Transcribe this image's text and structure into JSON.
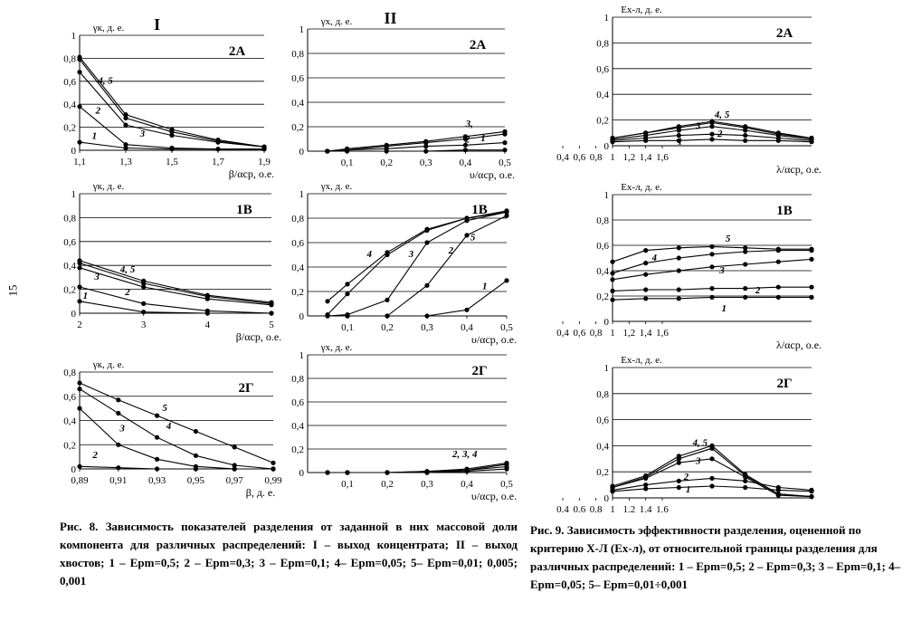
{
  "page_number": "15",
  "caption8": "Рис. 8. Зависимость показателей разделения от заданной в них массовой доли компонента для различных распределений: I – выход концентрата; II – выход хвостов; 1 – Eрm=0,5; 2 – Eрm=0,3; 3 – Eрm=0,1; 4– Eрm=0,05; 5– Eрm=0,01; 0,005; 0,001",
  "caption9": "Рис. 9. Зависимость эффективности разделения, оцененной по критерию Х-Л (Eх-л), от относительной границы разделения для различных распределений: 1 – Eрm=0,5; 2 – Eрm=0,3; 3 – Eрm=0,1; 4– Eрm=0,05; 5– Eрm=0,01÷0,001",
  "colors": {
    "line": "#000000",
    "grid": "#000000",
    "marker": "#000000"
  },
  "chart_data": [
    {
      "id": "I-2A",
      "type": "line",
      "column_heading": "I",
      "title": "2А",
      "ylabel": "γк, д. е.",
      "xlabel": "β/αср, о.е.",
      "xlim": [
        1.1,
        1.9
      ],
      "ylim": [
        0,
        1
      ],
      "xticks": [
        "1,1",
        "1,3",
        "1,5",
        "1,7",
        "1,9"
      ],
      "yticks": [
        "0",
        "0,2",
        "0,4",
        "0,6",
        "0,8",
        "1"
      ],
      "series_labels": [
        "1",
        "2",
        "3",
        "4, 5"
      ],
      "series": [
        {
          "name": "1",
          "x": [
            1.1,
            1.3,
            1.5,
            1.7,
            1.9
          ],
          "y": [
            0.07,
            0.02,
            0.01,
            0.01,
            0.01
          ]
        },
        {
          "name": "2",
          "x": [
            1.1,
            1.3,
            1.5,
            1.7,
            1.9
          ],
          "y": [
            0.38,
            0.05,
            0.02,
            0.01,
            0.01
          ]
        },
        {
          "name": "3",
          "x": [
            1.1,
            1.3,
            1.5,
            1.7,
            1.9
          ],
          "y": [
            0.68,
            0.22,
            0.13,
            0.07,
            0.03
          ]
        },
        {
          "name": "4",
          "x": [
            1.1,
            1.3,
            1.5,
            1.7,
            1.9
          ],
          "y": [
            0.79,
            0.28,
            0.16,
            0.08,
            0.03
          ]
        },
        {
          "name": "5",
          "x": [
            1.1,
            1.3,
            1.5,
            1.7,
            1.9
          ],
          "y": [
            0.81,
            0.31,
            0.18,
            0.09,
            0.03
          ]
        }
      ]
    },
    {
      "id": "II-2A",
      "type": "line",
      "column_heading": "II",
      "title": "2А",
      "ylabel": "γх, д. е.",
      "xlabel": "υ/αср, о.е.",
      "xlim": [
        0,
        0.5
      ],
      "ylim": [
        0,
        1
      ],
      "xticks": [
        "0,1",
        "0,2",
        "0,3",
        "0,4",
        "0,5"
      ],
      "yticks": [
        "0",
        "0,2",
        "0,4",
        "0,6",
        "0,8",
        "1"
      ],
      "series_labels": [
        "1",
        "2",
        "3,"
      ],
      "series": [
        {
          "name": "1",
          "x": [
            0.05,
            0.1,
            0.2,
            0.3,
            0.4,
            0.5
          ],
          "y": [
            0,
            0,
            0,
            0,
            0.01,
            0.01
          ]
        },
        {
          "name": "2",
          "x": [
            0.05,
            0.1,
            0.2,
            0.3,
            0.4,
            0.5
          ],
          "y": [
            0,
            0.01,
            0.02,
            0.04,
            0.05,
            0.07
          ]
        },
        {
          "name": "3",
          "x": [
            0.05,
            0.1,
            0.2,
            0.3,
            0.4,
            0.5
          ],
          "y": [
            0,
            0.01,
            0.04,
            0.07,
            0.1,
            0.14
          ]
        },
        {
          "name": "5",
          "x": [
            0.05,
            0.1,
            0.2,
            0.3,
            0.4,
            0.5
          ],
          "y": [
            0,
            0.02,
            0.05,
            0.08,
            0.12,
            0.16
          ]
        }
      ]
    },
    {
      "id": "III-2A",
      "type": "line",
      "title": "2А",
      "ylabel": "Eх-л, д. е.",
      "xlabel": "λ/αср, о.е.",
      "xlim": [
        0.4,
        1.6
      ],
      "ylim": [
        0,
        1
      ],
      "xticks": [
        "0,4",
        "0,6",
        "0,8",
        "1",
        "1,2",
        "1,4",
        "1,6"
      ],
      "yticks": [
        "0",
        "0,2",
        "0,4",
        "0,6",
        "0,8",
        "1"
      ],
      "series_labels": [
        "1",
        "2",
        "3",
        "4, 5"
      ],
      "series": [
        {
          "name": "1",
          "x": [
            0.4,
            0.6,
            0.8,
            1.0,
            1.2,
            1.4,
            1.6
          ],
          "y": [
            0.03,
            0.04,
            0.04,
            0.05,
            0.04,
            0.04,
            0.03
          ]
        },
        {
          "name": "2",
          "x": [
            0.4,
            0.6,
            0.8,
            1.0,
            1.2,
            1.4,
            1.6
          ],
          "y": [
            0.04,
            0.06,
            0.08,
            0.09,
            0.08,
            0.06,
            0.04
          ]
        },
        {
          "name": "3",
          "x": [
            0.4,
            0.6,
            0.8,
            1.0,
            1.2,
            1.4,
            1.6
          ],
          "y": [
            0.05,
            0.08,
            0.12,
            0.15,
            0.12,
            0.08,
            0.05
          ]
        },
        {
          "name": "4",
          "x": [
            0.4,
            0.6,
            0.8,
            1.0,
            1.2,
            1.4,
            1.6
          ],
          "y": [
            0.06,
            0.1,
            0.14,
            0.18,
            0.14,
            0.09,
            0.06
          ]
        },
        {
          "name": "5",
          "x": [
            0.4,
            0.6,
            0.8,
            1.0,
            1.2,
            1.4,
            1.6
          ],
          "y": [
            0.06,
            0.1,
            0.15,
            0.19,
            0.15,
            0.1,
            0.06
          ]
        }
      ]
    },
    {
      "id": "I-1B",
      "type": "line",
      "title": "1В",
      "ylabel": "γк, д. е.",
      "xlabel": "β/αср, о.е.",
      "xlim": [
        2,
        5
      ],
      "ylim": [
        0,
        1
      ],
      "xticks": [
        "2",
        "3",
        "4",
        "5"
      ],
      "yticks": [
        "0",
        "0,2",
        "0,4",
        "0,6",
        "0,8",
        "1"
      ],
      "series_labels": [
        "1",
        "2",
        "3",
        "4, 5"
      ],
      "series": [
        {
          "name": "1",
          "x": [
            2,
            3,
            4,
            5
          ],
          "y": [
            0.1,
            0.01,
            0.0,
            0.0
          ]
        },
        {
          "name": "2",
          "x": [
            2,
            3,
            4,
            5
          ],
          "y": [
            0.22,
            0.08,
            0.02,
            0.0
          ]
        },
        {
          "name": "3",
          "x": [
            2,
            3,
            4,
            5
          ],
          "y": [
            0.38,
            0.22,
            0.12,
            0.07
          ]
        },
        {
          "name": "4",
          "x": [
            2,
            3,
            4,
            5
          ],
          "y": [
            0.42,
            0.25,
            0.14,
            0.08
          ]
        },
        {
          "name": "5",
          "x": [
            2,
            3,
            4,
            5
          ],
          "y": [
            0.44,
            0.27,
            0.15,
            0.09
          ]
        }
      ]
    },
    {
      "id": "II-1B",
      "type": "line",
      "title": "1В",
      "ylabel": "γх, д. е.",
      "xlabel": "υ/αср, о.е.",
      "xlim": [
        0,
        0.5
      ],
      "ylim": [
        0,
        1
      ],
      "xticks": [
        "0,1",
        "0,2",
        "0,3",
        "0,4",
        "0,5"
      ],
      "yticks": [
        "0",
        "0,2",
        "0,4",
        "0,6",
        "0,8",
        "1"
      ],
      "series_labels": [
        "1",
        "2",
        "3",
        "4",
        "5"
      ],
      "series": [
        {
          "name": "1",
          "x": [
            0.05,
            0.1,
            0.2,
            0.3,
            0.4,
            0.5
          ],
          "y": [
            0,
            0,
            0,
            0,
            0.05,
            0.29
          ]
        },
        {
          "name": "2",
          "x": [
            0.05,
            0.1,
            0.2,
            0.3,
            0.4,
            0.5
          ],
          "y": [
            0,
            0,
            0,
            0.25,
            0.66,
            0.82
          ]
        },
        {
          "name": "3",
          "x": [
            0.05,
            0.1,
            0.2,
            0.3,
            0.4,
            0.5
          ],
          "y": [
            0,
            0.01,
            0.13,
            0.6,
            0.78,
            0.85
          ]
        },
        {
          "name": "4",
          "x": [
            0.05,
            0.1,
            0.2,
            0.3,
            0.4,
            0.5
          ],
          "y": [
            0.01,
            0.18,
            0.5,
            0.7,
            0.8,
            0.85
          ]
        },
        {
          "name": "5",
          "x": [
            0.05,
            0.1,
            0.2,
            0.3,
            0.4,
            0.5
          ],
          "y": [
            0.12,
            0.26,
            0.52,
            0.71,
            0.8,
            0.86
          ]
        }
      ]
    },
    {
      "id": "III-1B",
      "type": "line",
      "title": "1В",
      "ylabel": "Eх-л, д. е.",
      "xlabel": "λ/αср, о.е.",
      "xlim": [
        0.4,
        1.6
      ],
      "ylim": [
        0,
        1
      ],
      "xticks": [
        "0,4",
        "0,6",
        "0,8",
        "1",
        "1,2",
        "1,4",
        "1,6"
      ],
      "yticks": [
        "0",
        "0,2",
        "0,4",
        "0,6",
        "0,8",
        "1"
      ],
      "series_labels": [
        "1",
        "2",
        "3",
        "4",
        "5"
      ],
      "series": [
        {
          "name": "1",
          "x": [
            0.4,
            0.6,
            0.8,
            1.0,
            1.2,
            1.4,
            1.6
          ],
          "y": [
            0.17,
            0.18,
            0.18,
            0.19,
            0.19,
            0.19,
            0.19
          ]
        },
        {
          "name": "2",
          "x": [
            0.4,
            0.6,
            0.8,
            1.0,
            1.2,
            1.4,
            1.6
          ],
          "y": [
            0.24,
            0.25,
            0.25,
            0.26,
            0.26,
            0.27,
            0.27
          ]
        },
        {
          "name": "3",
          "x": [
            0.4,
            0.6,
            0.8,
            1.0,
            1.2,
            1.4,
            1.6
          ],
          "y": [
            0.33,
            0.37,
            0.4,
            0.43,
            0.45,
            0.47,
            0.49
          ]
        },
        {
          "name": "4",
          "x": [
            0.4,
            0.6,
            0.8,
            1.0,
            1.2,
            1.4,
            1.6
          ],
          "y": [
            0.38,
            0.46,
            0.5,
            0.53,
            0.55,
            0.56,
            0.56
          ]
        },
        {
          "name": "5",
          "x": [
            0.4,
            0.6,
            0.8,
            1.0,
            1.2,
            1.4,
            1.6
          ],
          "y": [
            0.47,
            0.56,
            0.58,
            0.59,
            0.58,
            0.57,
            0.57
          ]
        }
      ]
    },
    {
      "id": "I-2G",
      "type": "line",
      "title": "2Г",
      "ylabel": "γк, д. е.",
      "xlabel": "β, д. е.",
      "xlim": [
        0.89,
        0.99
      ],
      "ylim": [
        0,
        0.8
      ],
      "xticks": [
        "0,89",
        "0,91",
        "0,93",
        "0,95",
        "0,97",
        "0,99"
      ],
      "yticks": [
        "0",
        "0,2",
        "0,4",
        "0,6",
        "0,8"
      ],
      "series_labels": [
        "2",
        "3",
        "4",
        "5"
      ],
      "series": [
        {
          "name": "2",
          "x": [
            0.89,
            0.91,
            0.93,
            0.95,
            0.97,
            0.99
          ],
          "y": [
            0.02,
            0.01,
            0.0,
            0.0,
            0.0,
            0.0
          ]
        },
        {
          "name": "3",
          "x": [
            0.89,
            0.91,
            0.93,
            0.95,
            0.97,
            0.99
          ],
          "y": [
            0.5,
            0.2,
            0.08,
            0.02,
            0.0,
            0.0
          ]
        },
        {
          "name": "4",
          "x": [
            0.89,
            0.91,
            0.93,
            0.95,
            0.97,
            0.99
          ],
          "y": [
            0.66,
            0.46,
            0.26,
            0.11,
            0.03,
            0.0
          ]
        },
        {
          "name": "5",
          "x": [
            0.89,
            0.91,
            0.93,
            0.95,
            0.97,
            0.99
          ],
          "y": [
            0.71,
            0.57,
            0.44,
            0.31,
            0.18,
            0.05
          ]
        }
      ]
    },
    {
      "id": "II-2G",
      "type": "line",
      "title": "2Г",
      "ylabel": "γх, д. е.",
      "xlabel": "υ/αср, о.е.",
      "xlim": [
        0,
        0.5
      ],
      "ylim": [
        0,
        1
      ],
      "xticks": [
        "0,1",
        "0,2",
        "0,3",
        "0,4",
        "0,5"
      ],
      "yticks": [
        "0",
        "0,2",
        "0,4",
        "0,6",
        "0,8",
        "1"
      ],
      "series_labels": [
        "2, 3, 4"
      ],
      "series": [
        {
          "name": "1",
          "x": [
            0.05,
            0.1,
            0.2,
            0.3,
            0.4,
            0.5
          ],
          "y": [
            0,
            0,
            0,
            0,
            0.01,
            0.03
          ]
        },
        {
          "name": "2",
          "x": [
            0.05,
            0.1,
            0.2,
            0.3,
            0.4,
            0.5
          ],
          "y": [
            0,
            0,
            0,
            0,
            0.02,
            0.05
          ]
        },
        {
          "name": "3",
          "x": [
            0.05,
            0.1,
            0.2,
            0.3,
            0.4,
            0.5
          ],
          "y": [
            0,
            0,
            0,
            0.01,
            0.02,
            0.07
          ]
        },
        {
          "name": "4",
          "x": [
            0.05,
            0.1,
            0.2,
            0.3,
            0.4,
            0.5
          ],
          "y": [
            0,
            0,
            0,
            0.01,
            0.03,
            0.08
          ]
        }
      ]
    },
    {
      "id": "III-2G",
      "type": "line",
      "title": "2Г",
      "ylabel": "Eх-л, д. е.",
      "xlabel": "λ/αср, о.е.",
      "xlim": [
        0.4,
        1.6
      ],
      "ylim": [
        0,
        1
      ],
      "xticks": [
        "0,4",
        "0,6",
        "0,8",
        "1",
        "1,2",
        "1,4",
        "1,6"
      ],
      "yticks": [
        "0",
        "0,2",
        "0,4",
        "0,6",
        "0,8",
        "1"
      ],
      "series_labels": [
        "1",
        "2",
        "3",
        "4, 5"
      ],
      "series": [
        {
          "name": "1",
          "x": [
            0.4,
            0.6,
            0.8,
            1.0,
            1.2,
            1.4,
            1.6
          ],
          "y": [
            0.05,
            0.07,
            0.08,
            0.09,
            0.08,
            0.06,
            0.05
          ]
        },
        {
          "name": "2",
          "x": [
            0.4,
            0.6,
            0.8,
            1.0,
            1.2,
            1.4,
            1.6
          ],
          "y": [
            0.06,
            0.1,
            0.13,
            0.15,
            0.13,
            0.08,
            0.06
          ]
        },
        {
          "name": "3",
          "x": [
            0.4,
            0.6,
            0.8,
            1.0,
            1.2,
            1.4,
            1.6
          ],
          "y": [
            0.08,
            0.15,
            0.27,
            0.3,
            0.16,
            0.02,
            0.01
          ]
        },
        {
          "name": "4",
          "x": [
            0.4,
            0.6,
            0.8,
            1.0,
            1.2,
            1.4,
            1.6
          ],
          "y": [
            0.08,
            0.16,
            0.3,
            0.38,
            0.17,
            0.03,
            0.01
          ]
        },
        {
          "name": "5",
          "x": [
            0.4,
            0.6,
            0.8,
            1.0,
            1.2,
            1.4,
            1.6
          ],
          "y": [
            0.09,
            0.17,
            0.32,
            0.4,
            0.18,
            0.03,
            0.01
          ]
        }
      ]
    }
  ]
}
